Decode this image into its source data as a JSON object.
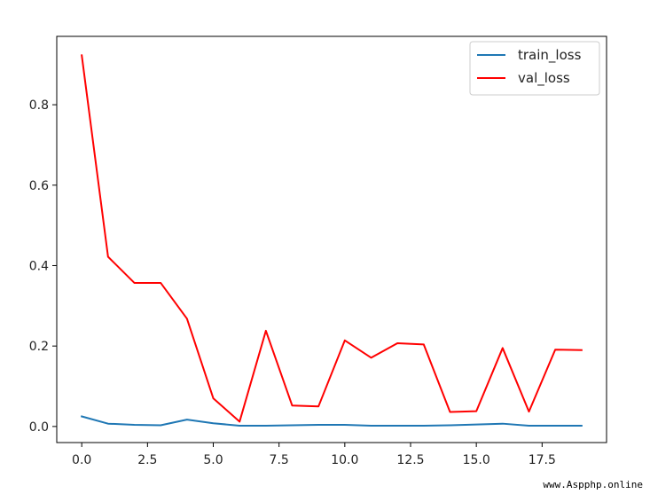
{
  "chart_data": {
    "type": "line",
    "title": "",
    "xlabel": "",
    "ylabel": "",
    "xlim": [
      -0.95,
      19.95
    ],
    "ylim": [
      -0.04,
      0.97
    ],
    "xticks": [
      0.0,
      2.5,
      5.0,
      7.5,
      10.0,
      12.5,
      15.0,
      17.5
    ],
    "xtick_labels": [
      "0.0",
      "2.5",
      "5.0",
      "7.5",
      "10.0",
      "12.5",
      "15.0",
      "17.5"
    ],
    "yticks": [
      0.0,
      0.2,
      0.4,
      0.6,
      0.8
    ],
    "ytick_labels": [
      "0.0",
      "0.2",
      "0.4",
      "0.6",
      "0.8"
    ],
    "grid": false,
    "legend_position": "top-right",
    "x": [
      0,
      1,
      2,
      3,
      4,
      5,
      6,
      7,
      8,
      9,
      10,
      11,
      12,
      13,
      14,
      15,
      16,
      17,
      18,
      19
    ],
    "series": [
      {
        "name": "train_loss",
        "color": "#1f77b4",
        "values": [
          0.025,
          0.007,
          0.004,
          0.003,
          0.017,
          0.008,
          0.002,
          0.002,
          0.003,
          0.004,
          0.004,
          0.002,
          0.002,
          0.002,
          0.003,
          0.005,
          0.007,
          0.002,
          0.002,
          0.002
        ]
      },
      {
        "name": "val_loss",
        "color": "#ff0000",
        "values": [
          0.923,
          0.422,
          0.357,
          0.357,
          0.268,
          0.07,
          0.012,
          0.238,
          0.052,
          0.05,
          0.214,
          0.171,
          0.207,
          0.204,
          0.036,
          0.038,
          0.195,
          0.037,
          0.191,
          0.19
        ]
      }
    ]
  },
  "watermark": "www.Aspphp.online"
}
